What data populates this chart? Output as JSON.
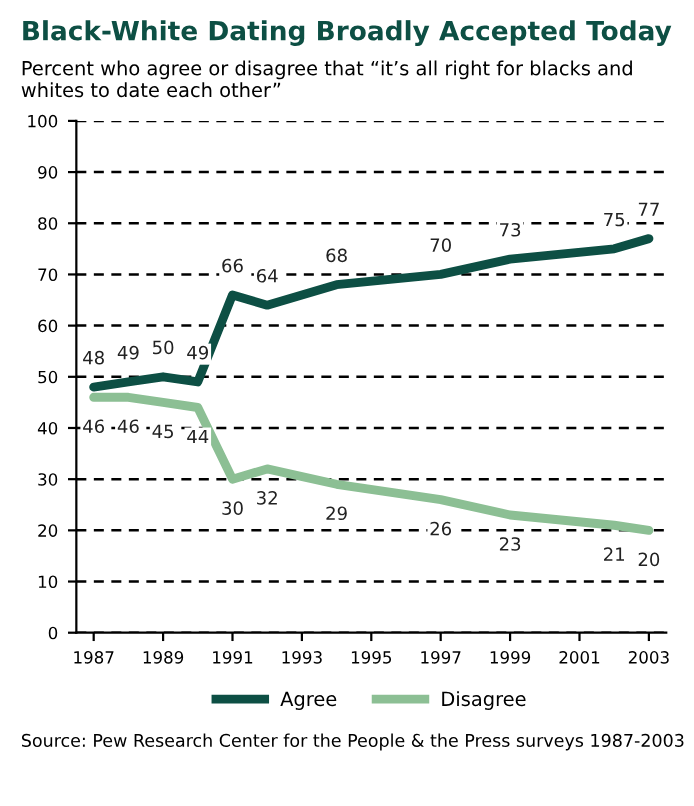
{
  "chart_data": {
    "type": "line",
    "title": "Black-White Dating Broadly Accepted Today",
    "subtitle": "Percent who agree or disagree that “it’s all right for blacks and whites to date each other”",
    "x": [
      1987,
      1988,
      1989,
      1990,
      1991,
      1992,
      1994,
      1997,
      1999,
      2002,
      2003
    ],
    "series": [
      {
        "name": "Agree",
        "color": "#0d4f44",
        "values": [
          48,
          49,
          50,
          49,
          66,
          64,
          68,
          70,
          73,
          75,
          77
        ]
      },
      {
        "name": "Disagree",
        "color": "#8cbf94",
        "values": [
          46,
          46,
          45,
          44,
          30,
          32,
          29,
          26,
          23,
          21,
          20
        ]
      }
    ],
    "xlim": [
      1986.5,
      2003.5
    ],
    "xticks": [
      1987,
      1989,
      1991,
      1993,
      1995,
      1997,
      1999,
      2001,
      2003
    ],
    "ylim": [
      0,
      100
    ],
    "yticks": [
      0,
      10,
      20,
      30,
      40,
      50,
      60,
      70,
      80,
      90,
      100
    ],
    "grid": "y",
    "legend": "bottom",
    "marker": "none",
    "line_style": "solid",
    "data_labels": true,
    "annotations": [
      "Source: Pew Research Center for the People & the Press surveys 1987-2003"
    ]
  }
}
